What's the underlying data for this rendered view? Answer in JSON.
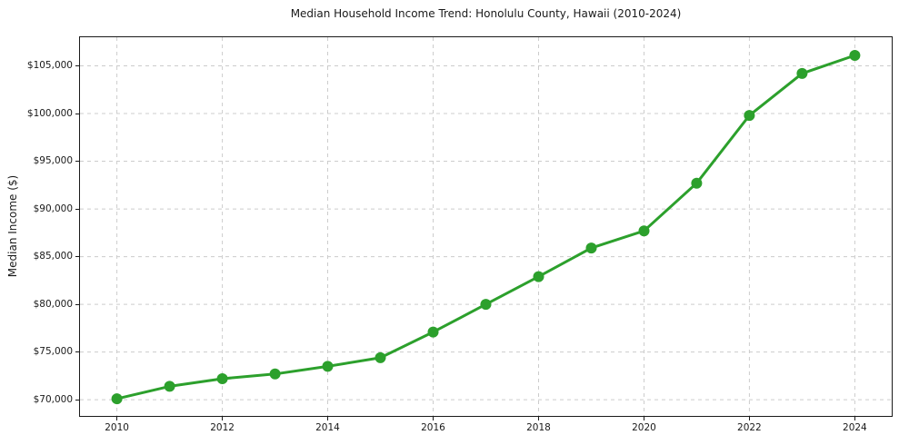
{
  "chart_data": {
    "type": "line",
    "title": "Median Household Income Trend: Honolulu County, Hawaii (2010-2024)",
    "xlabel": "",
    "ylabel": "Median Income ($)",
    "x": [
      2010,
      2011,
      2012,
      2013,
      2014,
      2015,
      2016,
      2017,
      2018,
      2019,
      2020,
      2021,
      2022,
      2023,
      2024
    ],
    "values": [
      70100,
      71400,
      72200,
      72700,
      73500,
      74400,
      77100,
      80000,
      82900,
      85900,
      87700,
      92700,
      99800,
      104200,
      106100
    ],
    "series_name": "Median household income",
    "xlim": [
      2009.3,
      2024.7
    ],
    "ylim": [
      68300,
      108000
    ],
    "xticks": [
      2010,
      2012,
      2014,
      2016,
      2018,
      2020,
      2022,
      2024
    ],
    "xtick_labels": [
      "2010",
      "2012",
      "2014",
      "2016",
      "2018",
      "2020",
      "2022",
      "2024"
    ],
    "yticks": [
      70000,
      75000,
      80000,
      85000,
      90000,
      95000,
      100000,
      105000
    ],
    "ytick_labels": [
      "$70,000",
      "$75,000",
      "$80,000",
      "$85,000",
      "$90,000",
      "$95,000",
      "$100,000",
      "$105,000"
    ],
    "grid": true,
    "grid_style": "dashed",
    "legend": "none",
    "line_color": "#2ca02c",
    "marker": "circle",
    "marker_color": "#2ca02c",
    "axis_color": "#1a1a1a",
    "grid_color": "#cccccc",
    "background": "#ffffff"
  }
}
